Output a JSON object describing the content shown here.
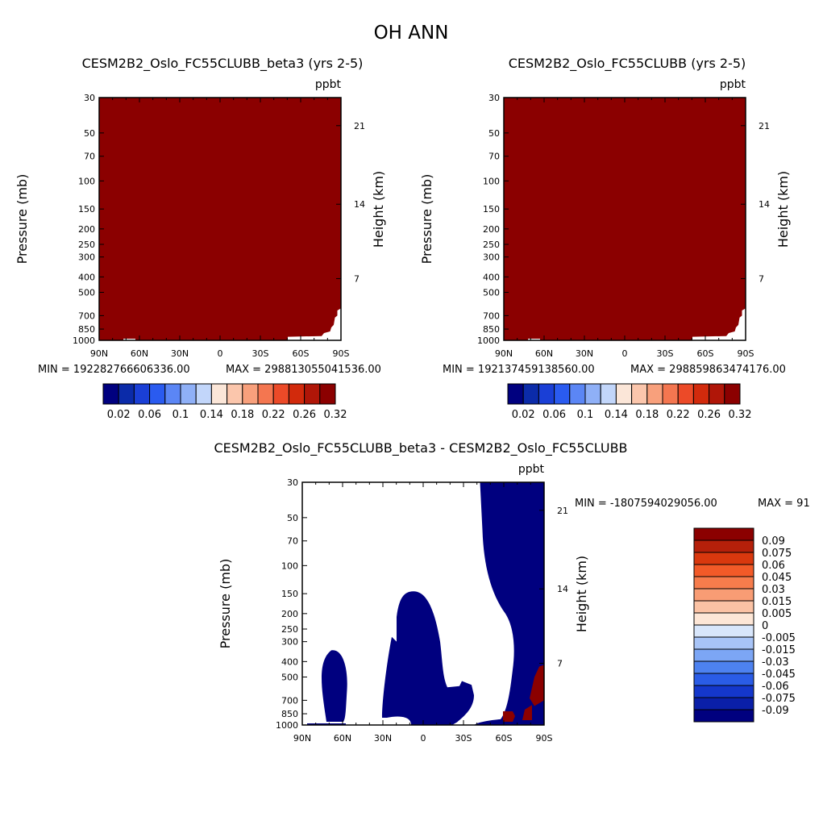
{
  "title": "OH ANN",
  "chart_data": [
    {
      "type": "heatmap",
      "title": "CESM2B2_Oslo_FC55CLUBB_beta3 (yrs 2-5)",
      "units": "ppbt",
      "ylabel": "Pressure (mb)",
      "ylabel_right": "Height (km)",
      "x_ticks": [
        "90N",
        "60N",
        "30N",
        "0",
        "30S",
        "60S",
        "90S"
      ],
      "y_ticks": [
        "30",
        "50",
        "70",
        "100",
        "150",
        "200",
        "250",
        "300",
        "400",
        "500",
        "700",
        "850",
        "1000"
      ],
      "y_right_ticks": [
        "21",
        "14",
        "7"
      ],
      "min_label": "MIN = 192282766606336.00",
      "max_label": "MAX = 298813055041536.00",
      "field": "entire domain exceeds top contour (0.32); dark red fill",
      "colorbar": {
        "orientation": "horizontal",
        "levels": [
          0.02,
          0.04,
          0.06,
          0.08,
          0.1,
          0.12,
          0.14,
          0.16,
          0.18,
          0.2,
          0.22,
          0.24,
          0.26,
          0.28,
          0.3,
          0.32
        ],
        "labels": [
          "0.02",
          "0.06",
          "0.1",
          "0.14",
          "0.18",
          "0.22",
          "0.26",
          "0.32"
        ],
        "colors": [
          "#00007f",
          "#0b2ba9",
          "#1a3fd6",
          "#2a5bf0",
          "#5b86f5",
          "#8fb0f7",
          "#c2d6fa",
          "#fbe6d8",
          "#fbc6ac",
          "#f8a07c",
          "#f47650",
          "#ec4a28",
          "#d22a0c",
          "#b01608",
          "#8b0000"
        ]
      }
    },
    {
      "type": "heatmap",
      "title": "CESM2B2_Oslo_FC55CLUBB (yrs 2-5)",
      "units": "ppbt",
      "ylabel": "Pressure (mb)",
      "ylabel_right": "Height (km)",
      "x_ticks": [
        "90N",
        "60N",
        "30N",
        "0",
        "30S",
        "60S",
        "90S"
      ],
      "y_ticks": [
        "30",
        "50",
        "70",
        "100",
        "150",
        "200",
        "250",
        "300",
        "400",
        "500",
        "700",
        "850",
        "1000"
      ],
      "y_right_ticks": [
        "21",
        "14",
        "7"
      ],
      "min_label": "MIN = 192137459138560.00",
      "max_label": "MAX = 298859863474176.00",
      "field": "entire domain exceeds top contour (0.32); dark red fill",
      "colorbar": {
        "orientation": "horizontal",
        "levels": [
          0.02,
          0.04,
          0.06,
          0.08,
          0.1,
          0.12,
          0.14,
          0.16,
          0.18,
          0.2,
          0.22,
          0.24,
          0.26,
          0.28,
          0.3,
          0.32
        ],
        "labels": [
          "0.02",
          "0.06",
          "0.1",
          "0.14",
          "0.18",
          "0.22",
          "0.26",
          "0.32"
        ],
        "colors": [
          "#00007f",
          "#0b2ba9",
          "#1a3fd6",
          "#2a5bf0",
          "#5b86f5",
          "#8fb0f7",
          "#c2d6fa",
          "#fbe6d8",
          "#fbc6ac",
          "#f8a07c",
          "#f47650",
          "#ec4a28",
          "#d22a0c",
          "#b01608",
          "#8b0000"
        ]
      }
    },
    {
      "type": "heatmap",
      "title": "CESM2B2_Oslo_FC55CLUBB_beta3 - CESM2B2_Oslo_FC55CLUBB",
      "units": "ppbt",
      "ylabel": "Pressure (mb)",
      "ylabel_right": "Height (km)",
      "x_ticks": [
        "90N",
        "60N",
        "30N",
        "0",
        "30S",
        "60S",
        "90S"
      ],
      "y_ticks": [
        "30",
        "50",
        "70",
        "100",
        "150",
        "200",
        "250",
        "300",
        "400",
        "500",
        "700",
        "850",
        "1000"
      ],
      "y_right_ticks": [
        "21",
        "14",
        "7"
      ],
      "min_label": "MIN = -1807594029056.00",
      "max_label": "MAX = 91",
      "field": "mostly white (near zero); dark blue (< -0.09) regions: 70N-60N 350-1000mb, 30N-0 150-900mb, 45S-90S 30-1000mb; dark red (> 0.09) spots near 60S-90S 500-1000mb",
      "colorbar": {
        "orientation": "vertical",
        "labels": [
          "0.09",
          "0.075",
          "0.06",
          "0.045",
          "0.03",
          "0.015",
          "0.005",
          "0",
          "-0.005",
          "-0.015",
          "-0.03",
          "-0.045",
          "-0.06",
          "-0.075",
          "-0.09"
        ],
        "colors": [
          "#8b0000",
          "#b5200a",
          "#d9380e",
          "#f25a28",
          "#f67c4c",
          "#f89c74",
          "#fbc2a4",
          "#fde6d6",
          "#d8e6fb",
          "#a8c4f7",
          "#7ca6f5",
          "#4d82f0",
          "#2a5ce6",
          "#1437cc",
          "#0a1fa8",
          "#00007f"
        ]
      }
    }
  ]
}
